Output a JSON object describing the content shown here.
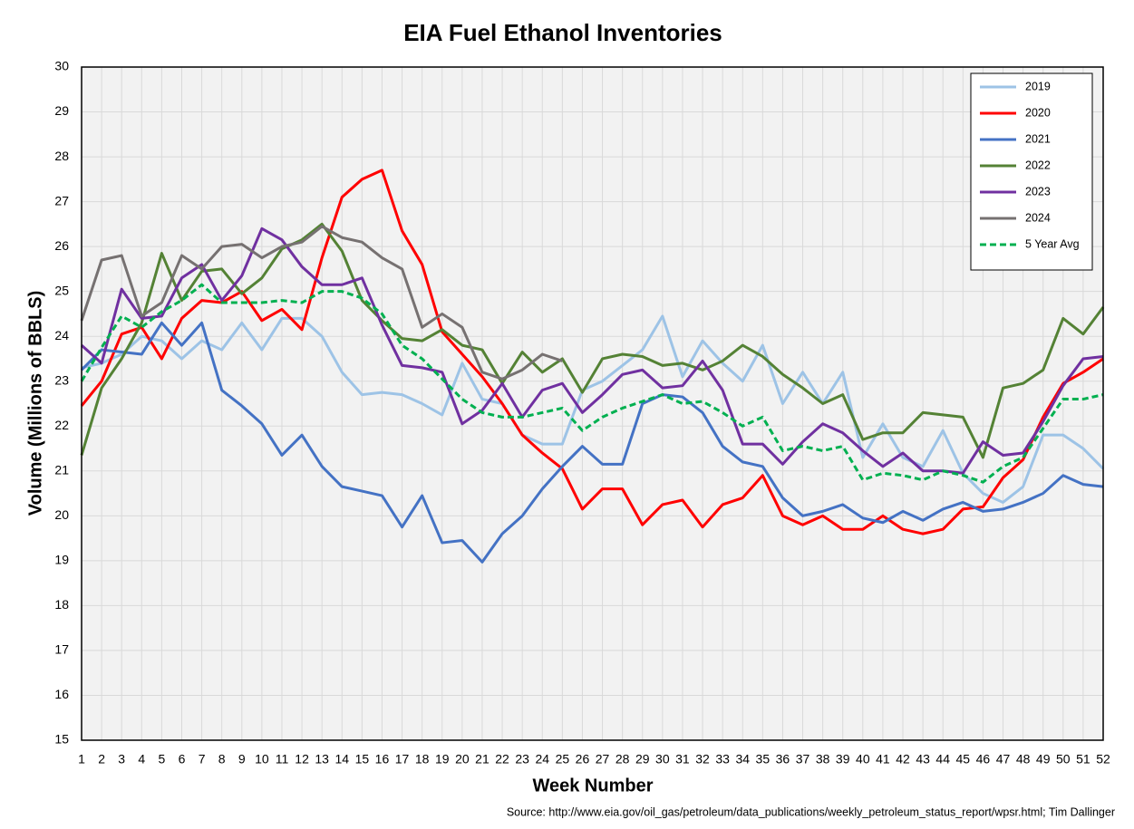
{
  "chart_data": {
    "type": "line",
    "title": "EIA Fuel Ethanol Inventories",
    "x_label": "Week Number",
    "y_label": "Volume (Millions of BBLS)",
    "source": "Source: http://www.eia.gov/oil_gas/petroleum/data_publications/weekly_petroleum_status_report/wpsr.html; Tim Dallinger",
    "x": [
      1,
      2,
      3,
      4,
      5,
      6,
      7,
      8,
      9,
      10,
      11,
      12,
      13,
      14,
      15,
      16,
      17,
      18,
      19,
      20,
      21,
      22,
      23,
      24,
      25,
      26,
      27,
      28,
      29,
      30,
      31,
      32,
      33,
      34,
      35,
      36,
      37,
      38,
      39,
      40,
      41,
      42,
      43,
      44,
      45,
      46,
      47,
      48,
      49,
      50,
      51,
      52
    ],
    "xlim": [
      1,
      52
    ],
    "xticks": [
      1,
      2,
      3,
      4,
      5,
      6,
      7,
      8,
      9,
      10,
      11,
      12,
      13,
      14,
      15,
      16,
      17,
      18,
      19,
      20,
      21,
      22,
      23,
      24,
      25,
      26,
      27,
      28,
      29,
      30,
      31,
      32,
      33,
      34,
      35,
      36,
      37,
      38,
      39,
      40,
      41,
      42,
      43,
      44,
      45,
      46,
      47,
      48,
      49,
      50,
      51,
      52
    ],
    "ylim": [
      15,
      30
    ],
    "yticks": [
      15,
      16,
      17,
      18,
      19,
      20,
      21,
      22,
      23,
      24,
      25,
      26,
      27,
      28,
      29,
      30
    ],
    "grid": true,
    "legend": "upper right",
    "series": [
      {
        "name": "2019",
        "color": "#9dc3e6",
        "values": [
          23.3,
          23.4,
          23.6,
          24.0,
          23.9,
          23.5,
          23.9,
          23.7,
          24.3,
          23.7,
          24.4,
          24.4,
          24.0,
          23.2,
          22.7,
          22.75,
          22.7,
          22.5,
          22.25,
          23.4,
          22.6,
          22.5,
          21.8,
          21.6,
          21.6,
          22.8,
          23.0,
          23.35,
          23.7,
          24.45,
          23.1,
          23.9,
          23.4,
          23.0,
          23.8,
          22.5,
          23.2,
          22.5,
          23.2,
          21.3,
          22.05,
          21.3,
          21.1,
          21.9,
          20.95,
          20.5,
          20.3,
          20.65,
          21.8,
          21.8,
          21.5,
          21.05
        ]
      },
      {
        "name": "2020",
        "color": "#ff0000",
        "values": [
          22.45,
          23.0,
          24.05,
          24.2,
          23.5,
          24.4,
          24.8,
          24.75,
          25.0,
          24.35,
          24.6,
          24.15,
          25.75,
          27.1,
          27.5,
          27.7,
          26.35,
          25.6,
          24.1,
          23.6,
          23.1,
          22.5,
          21.8,
          21.4,
          21.05,
          20.15,
          20.6,
          20.6,
          19.8,
          20.25,
          20.35,
          19.75,
          20.25,
          20.4,
          20.9,
          20.0,
          19.8,
          20.0,
          19.7,
          19.7,
          20.0,
          19.7,
          19.6,
          19.7,
          20.15,
          20.2,
          20.85,
          21.25,
          22.2,
          22.95,
          23.2,
          23.5
        ]
      },
      {
        "name": "2021",
        "color": "#4472c4",
        "values": [
          23.25,
          23.7,
          23.65,
          23.6,
          24.3,
          23.8,
          24.3,
          22.8,
          22.45,
          22.05,
          21.35,
          21.8,
          21.1,
          20.65,
          20.55,
          20.45,
          19.75,
          20.45,
          19.4,
          19.45,
          18.97,
          19.6,
          20.0,
          20.6,
          21.1,
          21.55,
          21.15,
          21.15,
          22.5,
          22.7,
          22.65,
          22.3,
          21.55,
          21.2,
          21.1,
          20.4,
          20.0,
          20.1,
          20.25,
          19.95,
          19.85,
          20.1,
          19.9,
          20.15,
          20.3,
          20.1,
          20.15,
          20.3,
          20.5,
          20.9,
          20.7,
          20.65
        ]
      },
      {
        "name": "2022",
        "color": "#548235",
        "values": [
          21.35,
          22.85,
          23.5,
          24.3,
          25.85,
          24.8,
          25.45,
          25.5,
          24.95,
          25.3,
          25.95,
          26.15,
          26.5,
          25.9,
          24.8,
          24.35,
          23.95,
          23.9,
          24.15,
          23.8,
          23.7,
          22.95,
          23.65,
          23.2,
          23.5,
          22.75,
          23.5,
          23.6,
          23.55,
          23.35,
          23.4,
          23.25,
          23.45,
          23.8,
          23.55,
          23.15,
          22.85,
          22.5,
          22.7,
          21.7,
          21.85,
          21.85,
          22.3,
          22.25,
          22.2,
          21.3,
          22.85,
          22.95,
          23.25,
          24.4,
          24.05,
          24.65
        ]
      },
      {
        "name": "2023",
        "color": "#7030a0",
        "values": [
          23.8,
          23.4,
          25.05,
          24.4,
          24.45,
          25.3,
          25.6,
          24.8,
          25.35,
          26.4,
          26.15,
          25.55,
          25.15,
          25.15,
          25.3,
          24.25,
          23.35,
          23.3,
          23.2,
          22.05,
          22.35,
          22.95,
          22.2,
          22.8,
          22.95,
          22.3,
          22.7,
          23.15,
          23.25,
          22.85,
          22.9,
          23.45,
          22.8,
          21.6,
          21.6,
          21.15,
          21.65,
          22.05,
          21.85,
          21.45,
          21.1,
          21.4,
          21.0,
          21.0,
          20.95,
          21.65,
          21.35,
          21.4,
          22.1,
          22.9,
          23.5,
          23.55
        ]
      },
      {
        "name": "2024",
        "color": "#767171",
        "values": [
          24.35,
          25.7,
          25.8,
          24.45,
          24.75,
          25.8,
          25.5,
          26.0,
          26.05,
          25.75,
          26.0,
          26.1,
          26.45,
          26.2,
          26.1,
          25.75,
          25.5,
          24.2,
          24.5,
          24.2,
          23.2,
          23.05,
          23.25,
          23.6,
          23.45,
          null,
          null,
          null,
          null,
          null,
          null,
          null,
          null,
          null,
          null,
          null,
          null,
          null,
          null,
          null,
          null,
          null,
          null,
          null,
          null,
          null,
          null,
          null,
          null,
          null,
          null,
          null
        ]
      },
      {
        "name": "5 Year Avg",
        "color": "#00b050",
        "dashed": true,
        "values": [
          23.0,
          23.75,
          24.45,
          24.2,
          24.55,
          24.8,
          25.15,
          24.75,
          24.75,
          24.75,
          24.8,
          24.75,
          25.0,
          25.0,
          24.85,
          24.5,
          23.8,
          23.5,
          23.05,
          22.6,
          22.3,
          22.2,
          22.2,
          22.3,
          22.4,
          21.9,
          22.2,
          22.4,
          22.55,
          22.7,
          22.5,
          22.55,
          22.3,
          22.0,
          22.2,
          21.45,
          21.55,
          21.45,
          21.55,
          20.8,
          20.95,
          20.9,
          20.8,
          21.0,
          20.9,
          20.75,
          21.1,
          21.3,
          21.95,
          22.6,
          22.6,
          22.7
        ]
      }
    ]
  }
}
